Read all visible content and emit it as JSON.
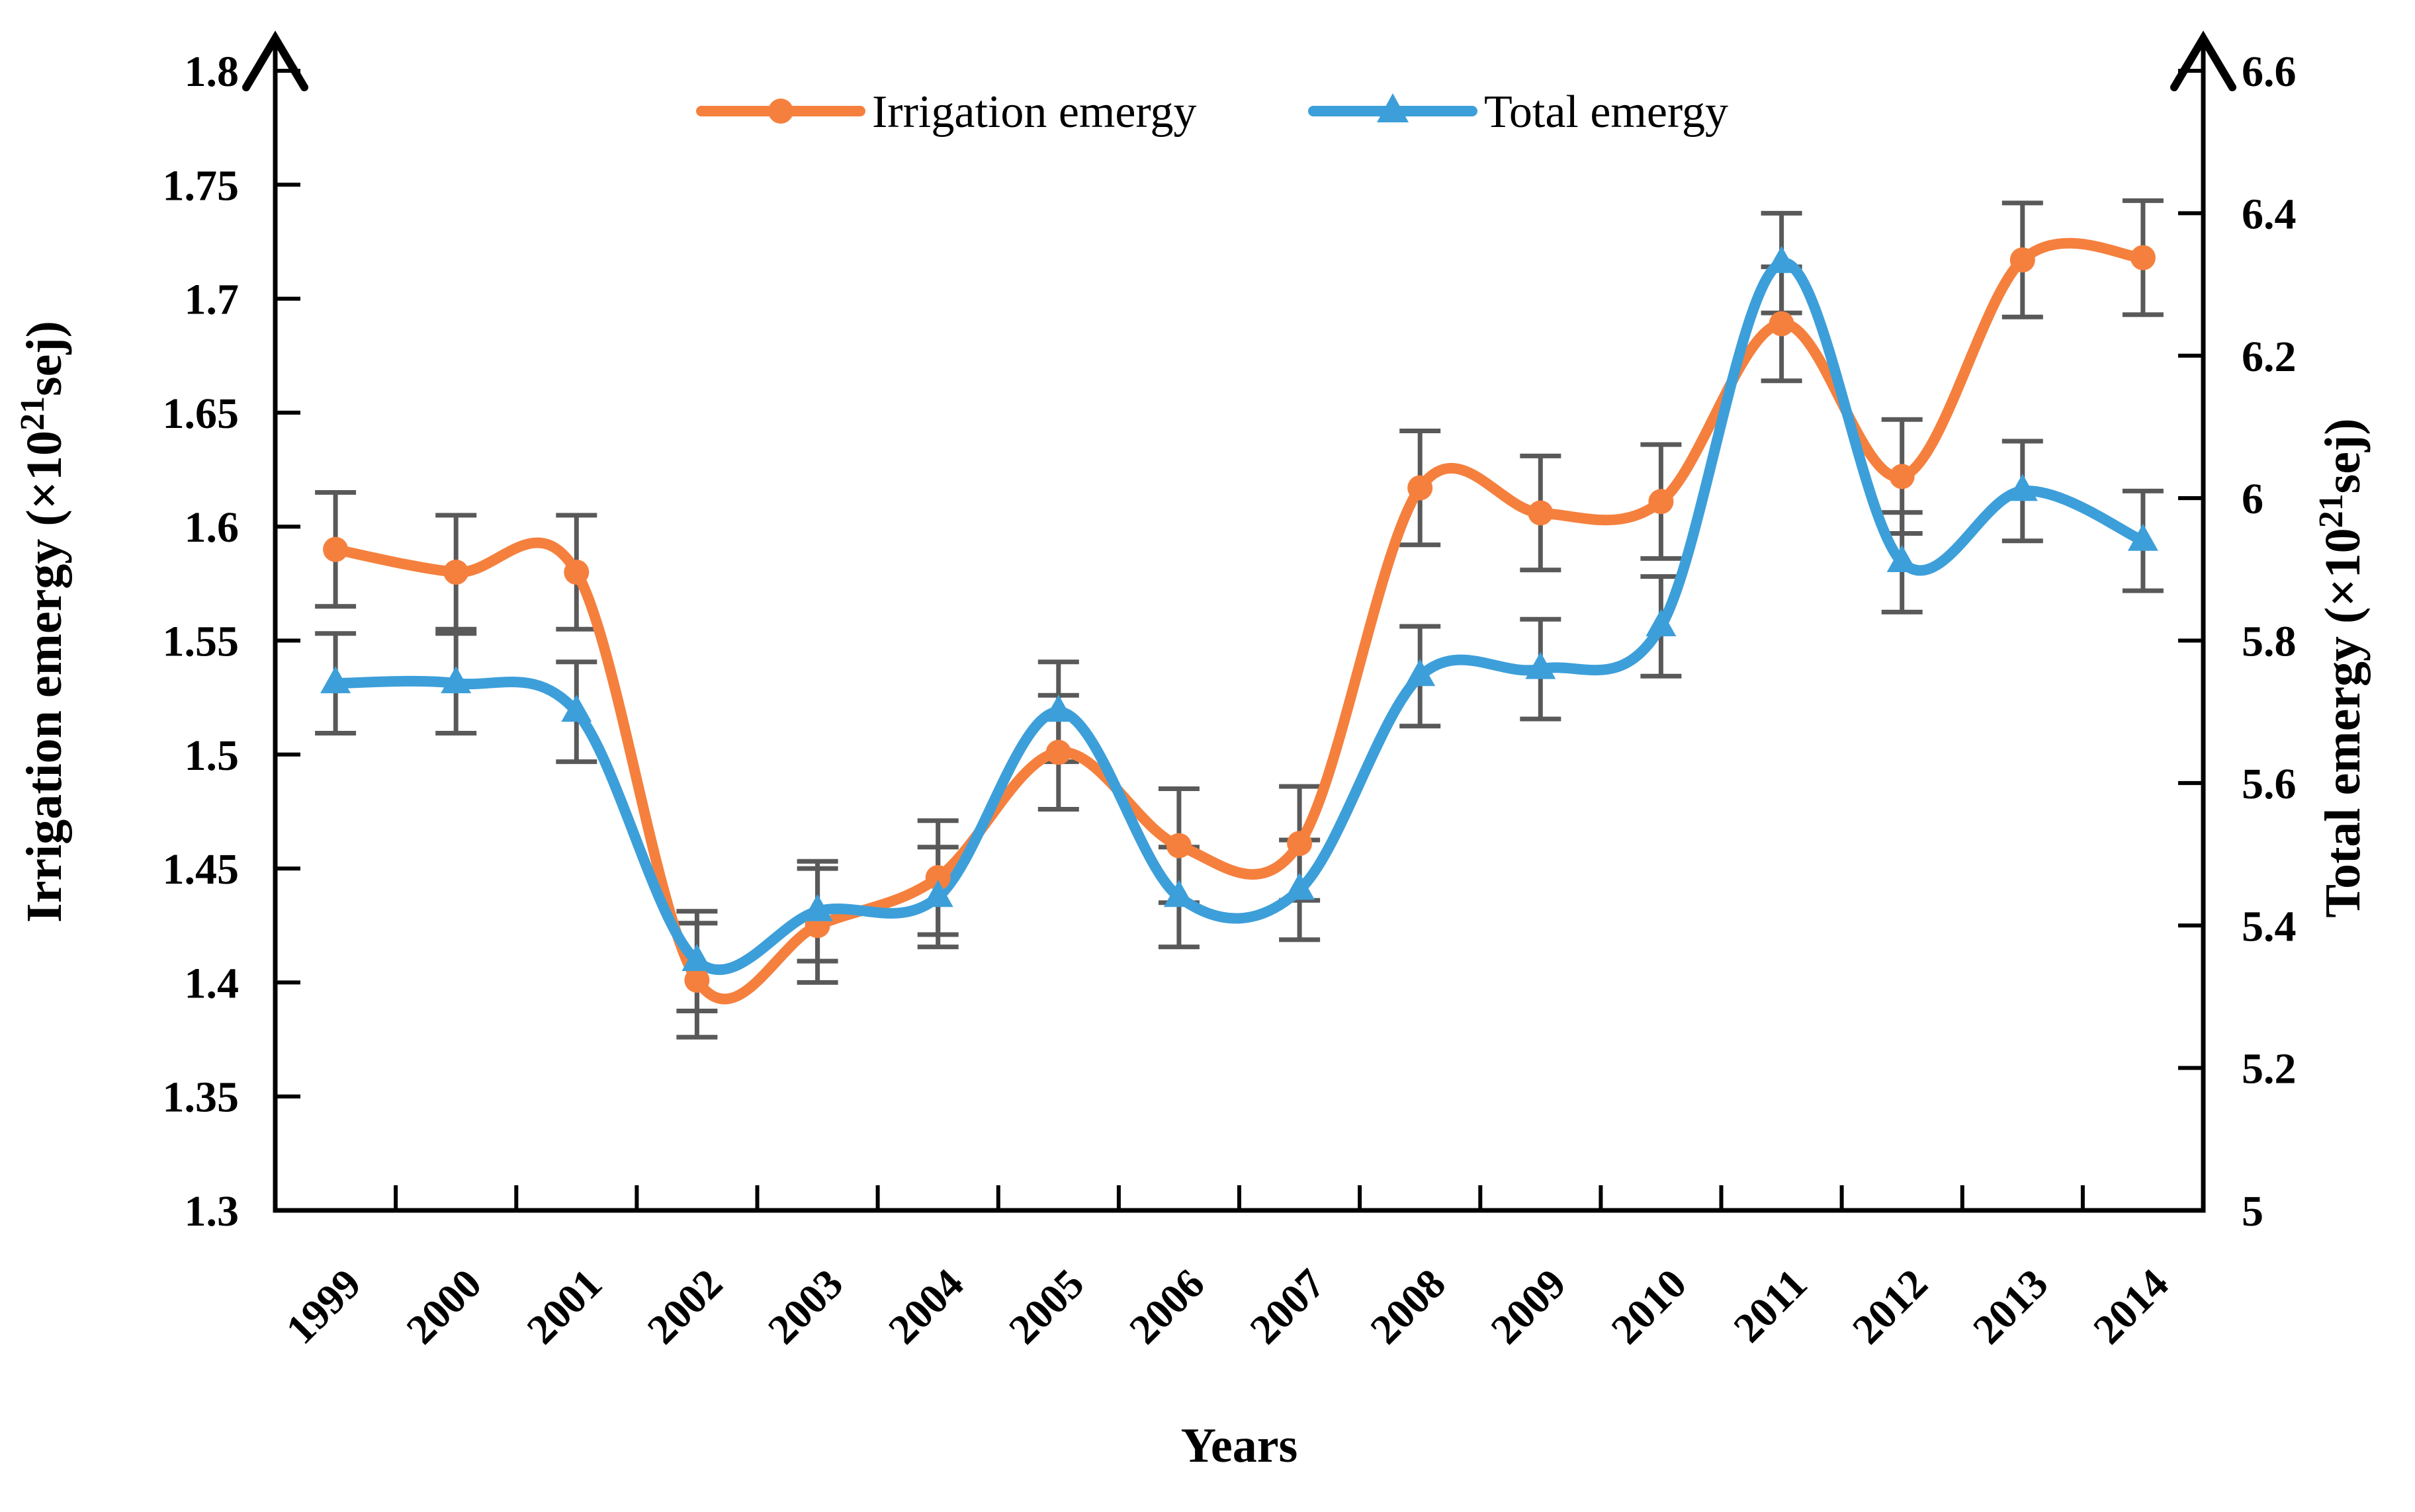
{
  "chart_data": {
    "type": "line",
    "title": "",
    "x": [
      "1999",
      "2000",
      "2001",
      "2002",
      "2003",
      "2004",
      "2005",
      "2006",
      "2007",
      "2008",
      "2009",
      "2010",
      "2011",
      "2012",
      "2013",
      "2014"
    ],
    "xlabel": "Years",
    "series": [
      {
        "name": "Irrigation emergy",
        "axis": "left",
        "color": "#F5803E",
        "marker": "circle",
        "values": [
          1.59,
          1.58,
          1.58,
          1.401,
          1.425,
          1.446,
          1.501,
          1.46,
          1.461,
          1.617,
          1.606,
          1.611,
          1.689,
          1.622,
          1.717,
          1.718
        ],
        "error": 0.025
      },
      {
        "name": "Total emergy",
        "axis": "right",
        "color": "#3D9FD9",
        "marker": "triangle",
        "values": [
          5.74,
          5.74,
          5.7,
          5.35,
          5.42,
          5.44,
          5.7,
          5.44,
          5.45,
          5.75,
          5.76,
          5.82,
          6.33,
          5.91,
          6.01,
          5.94
        ],
        "error": 0.07
      }
    ],
    "left_axis": {
      "title": "Irrigation emergy",
      "unit_prefix": "(×10",
      "unit_sup": "21",
      "unit_suffix": "sej)",
      "min": 1.3,
      "max": 1.8,
      "tick_step": 0.05,
      "ticks": [
        "1.8",
        "1.75",
        "1.7",
        "1.65",
        "1.6",
        "1.55",
        "1.5",
        "1.45",
        "1.4",
        "1.35",
        "1.3"
      ]
    },
    "right_axis": {
      "title": "Total emergy",
      "unit_prefix": "(×10",
      "unit_sup": "21",
      "unit_suffix": "sej)",
      "min": 5,
      "max": 6.6,
      "tick_step": 0.2,
      "ticks": [
        "6.6",
        "6.4",
        "6.2",
        "6",
        "5.8",
        "5.6",
        "5.4",
        "5.2",
        "5"
      ]
    },
    "legend_position": "top-center",
    "grid": false,
    "error_bar_color": "#595959",
    "axis_color": "#000000"
  }
}
